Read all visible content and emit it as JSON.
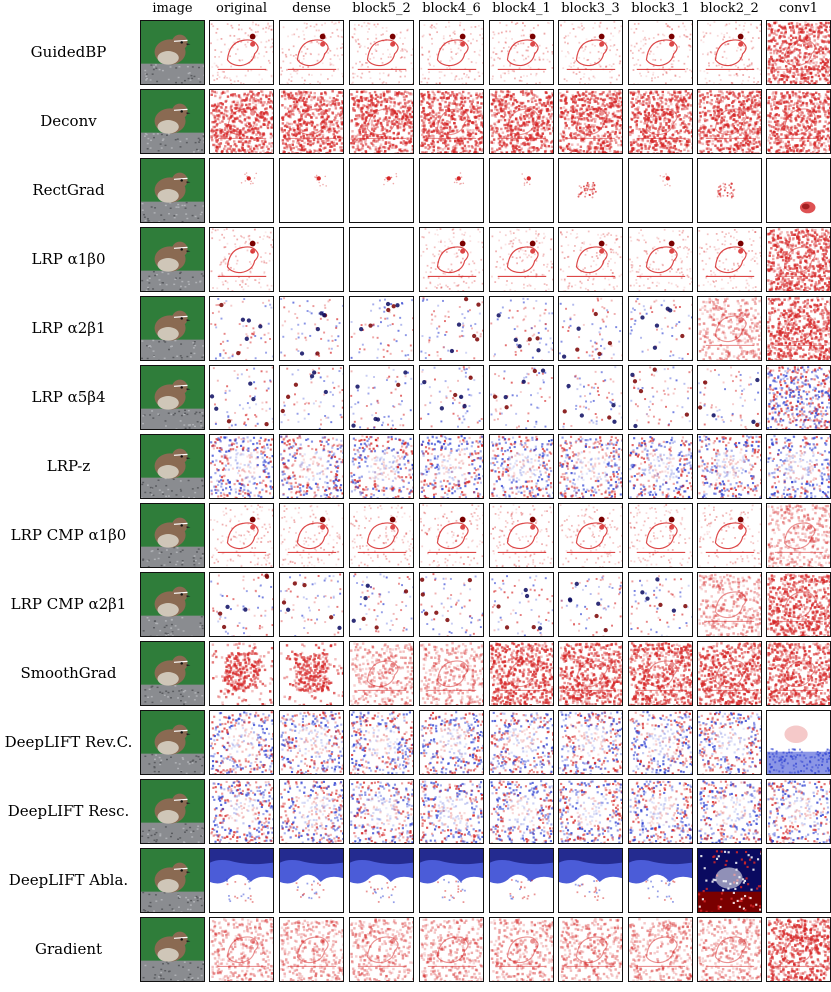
{
  "columns": [
    "image",
    "original",
    "dense",
    "block5_2",
    "block4_6",
    "block4_1",
    "block3_3",
    "block3_1",
    "block2_2",
    "conv1"
  ],
  "rows": [
    {
      "label": "GuidedBP",
      "kinds": [
        "photo",
        "sparse_red",
        "sparse_red",
        "sparse_red",
        "sparse_red",
        "sparse_red",
        "sparse_red",
        "sparse_red",
        "sparse_red",
        "dense_red"
      ]
    },
    {
      "label": "Deconv",
      "kinds": [
        "photo",
        "dense_red",
        "dense_red",
        "dense_red",
        "dense_red",
        "dense_red",
        "dense_red",
        "dense_red",
        "dense_red",
        "dense_red"
      ]
    },
    {
      "label": "RectGrad",
      "kinds": [
        "photo",
        "dot",
        "dot",
        "dot",
        "dot",
        "dot",
        "blob",
        "dot",
        "blob",
        "corner_blob"
      ]
    },
    {
      "label": "LRP α1β0",
      "kinds": [
        "photo",
        "sparse_red",
        "blank",
        "blank",
        "sparse_red",
        "sparse_red",
        "sparse_red",
        "sparse_red",
        "sparse_red",
        "dense_red"
      ]
    },
    {
      "label": "LRP α2β1",
      "kinds": [
        "photo",
        "speckle",
        "speckle",
        "speckle",
        "speckle",
        "speckle",
        "speckle",
        "speckle",
        "light_red",
        "dense_red"
      ]
    },
    {
      "label": "LRP α5β4",
      "kinds": [
        "photo",
        "speckle",
        "speckle",
        "speckle",
        "speckle",
        "speckle",
        "speckle",
        "speckle",
        "speckle",
        "mixed_dense"
      ]
    },
    {
      "label": "LRP-z",
      "kinds": [
        "photo",
        "mixed",
        "mixed",
        "mixed",
        "mixed",
        "mixed",
        "mixed",
        "mixed",
        "mixed",
        "mixed_blue"
      ]
    },
    {
      "label": "LRP CMP α1β0",
      "kinds": [
        "photo",
        "sparse_red",
        "sparse_red",
        "sparse_red",
        "sparse_red",
        "sparse_red",
        "sparse_red",
        "sparse_red",
        "sparse_red",
        "light_red"
      ]
    },
    {
      "label": "LRP CMP α2β1",
      "kinds": [
        "photo",
        "speckle",
        "speckle",
        "speckle",
        "speckle",
        "speckle",
        "speckle",
        "speckle",
        "light_red",
        "dense_red"
      ]
    },
    {
      "label": "SmoothGrad",
      "kinds": [
        "photo",
        "center_red",
        "center_red",
        "light_red",
        "light_red",
        "dense_red",
        "dense_red",
        "dense_red",
        "dense_red",
        "dense_red"
      ]
    },
    {
      "label": "DeepLIFT Rev.C.",
      "kinds": [
        "photo",
        "mixed",
        "mixed",
        "mixed",
        "mixed",
        "mixed",
        "mixed",
        "mixed",
        "mixed",
        "blue_bottom"
      ]
    },
    {
      "label": "DeepLIFT Resc.",
      "kinds": [
        "photo",
        "mixed",
        "mixed",
        "mixed",
        "mixed",
        "mixed",
        "mixed",
        "mixed",
        "mixed",
        "mixed"
      ]
    },
    {
      "label": "DeepLIFT Abla.",
      "kinds": [
        "photo",
        "blue_top",
        "blue_top",
        "blue_top",
        "blue_top",
        "blue_top",
        "blue_top",
        "blue_top",
        "dark_block",
        "blank"
      ]
    },
    {
      "label": "Gradient",
      "kinds": [
        "photo",
        "light_red",
        "light_red",
        "light_red",
        "light_red",
        "light_red",
        "light_red",
        "light_red",
        "light_red",
        "dense_red"
      ]
    }
  ],
  "palette": {
    "red": "#d62728",
    "dark_red": "#7a0000",
    "blue": "#2c3fd1",
    "dark_blue": "#0a0a60",
    "photo_bg": "#2f7d3a",
    "bird_body": "#8a6a52",
    "bird_belly": "#cfc6b8",
    "branch": "#8a8c90"
  }
}
